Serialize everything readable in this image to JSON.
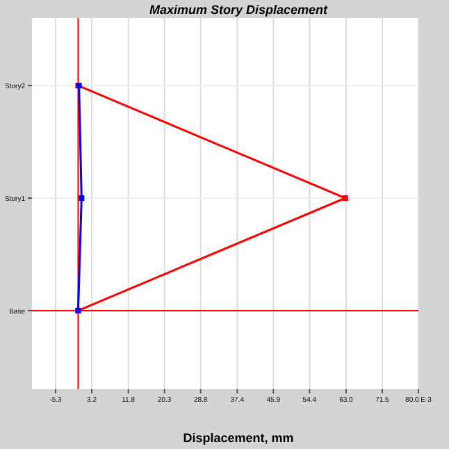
{
  "chart_data": {
    "type": "line",
    "orientation": "horizontal",
    "title": "Maximum Story Displacement",
    "xlabel": "Displacement, mm",
    "categories": [
      "Story2",
      "Story1",
      "Base"
    ],
    "series": [
      {
        "color": "#ff0000",
        "values": [
          0,
          62.8,
          0
        ]
      },
      {
        "color": "#0000ff",
        "values": [
          0.2,
          0.8,
          0
        ]
      }
    ],
    "xlim": [
      -5.3,
      80.0
    ],
    "xticks": [
      -5.3,
      3.2,
      11.8,
      20.3,
      28.8,
      37.4,
      45.9,
      54.4,
      {
        "value": 63.0,
        "label": "63.0"
      },
      71.5,
      {
        "value": 80.0,
        "label": "80.0 E-3"
      }
    ],
    "ref_lines": [
      {
        "axis": "x",
        "value": 0,
        "color": "#ff0000"
      },
      {
        "axis": "y",
        "value": "Base",
        "color": "#ff0000"
      }
    ],
    "grid": true,
    "marker": "square",
    "line_style": "solid"
  }
}
